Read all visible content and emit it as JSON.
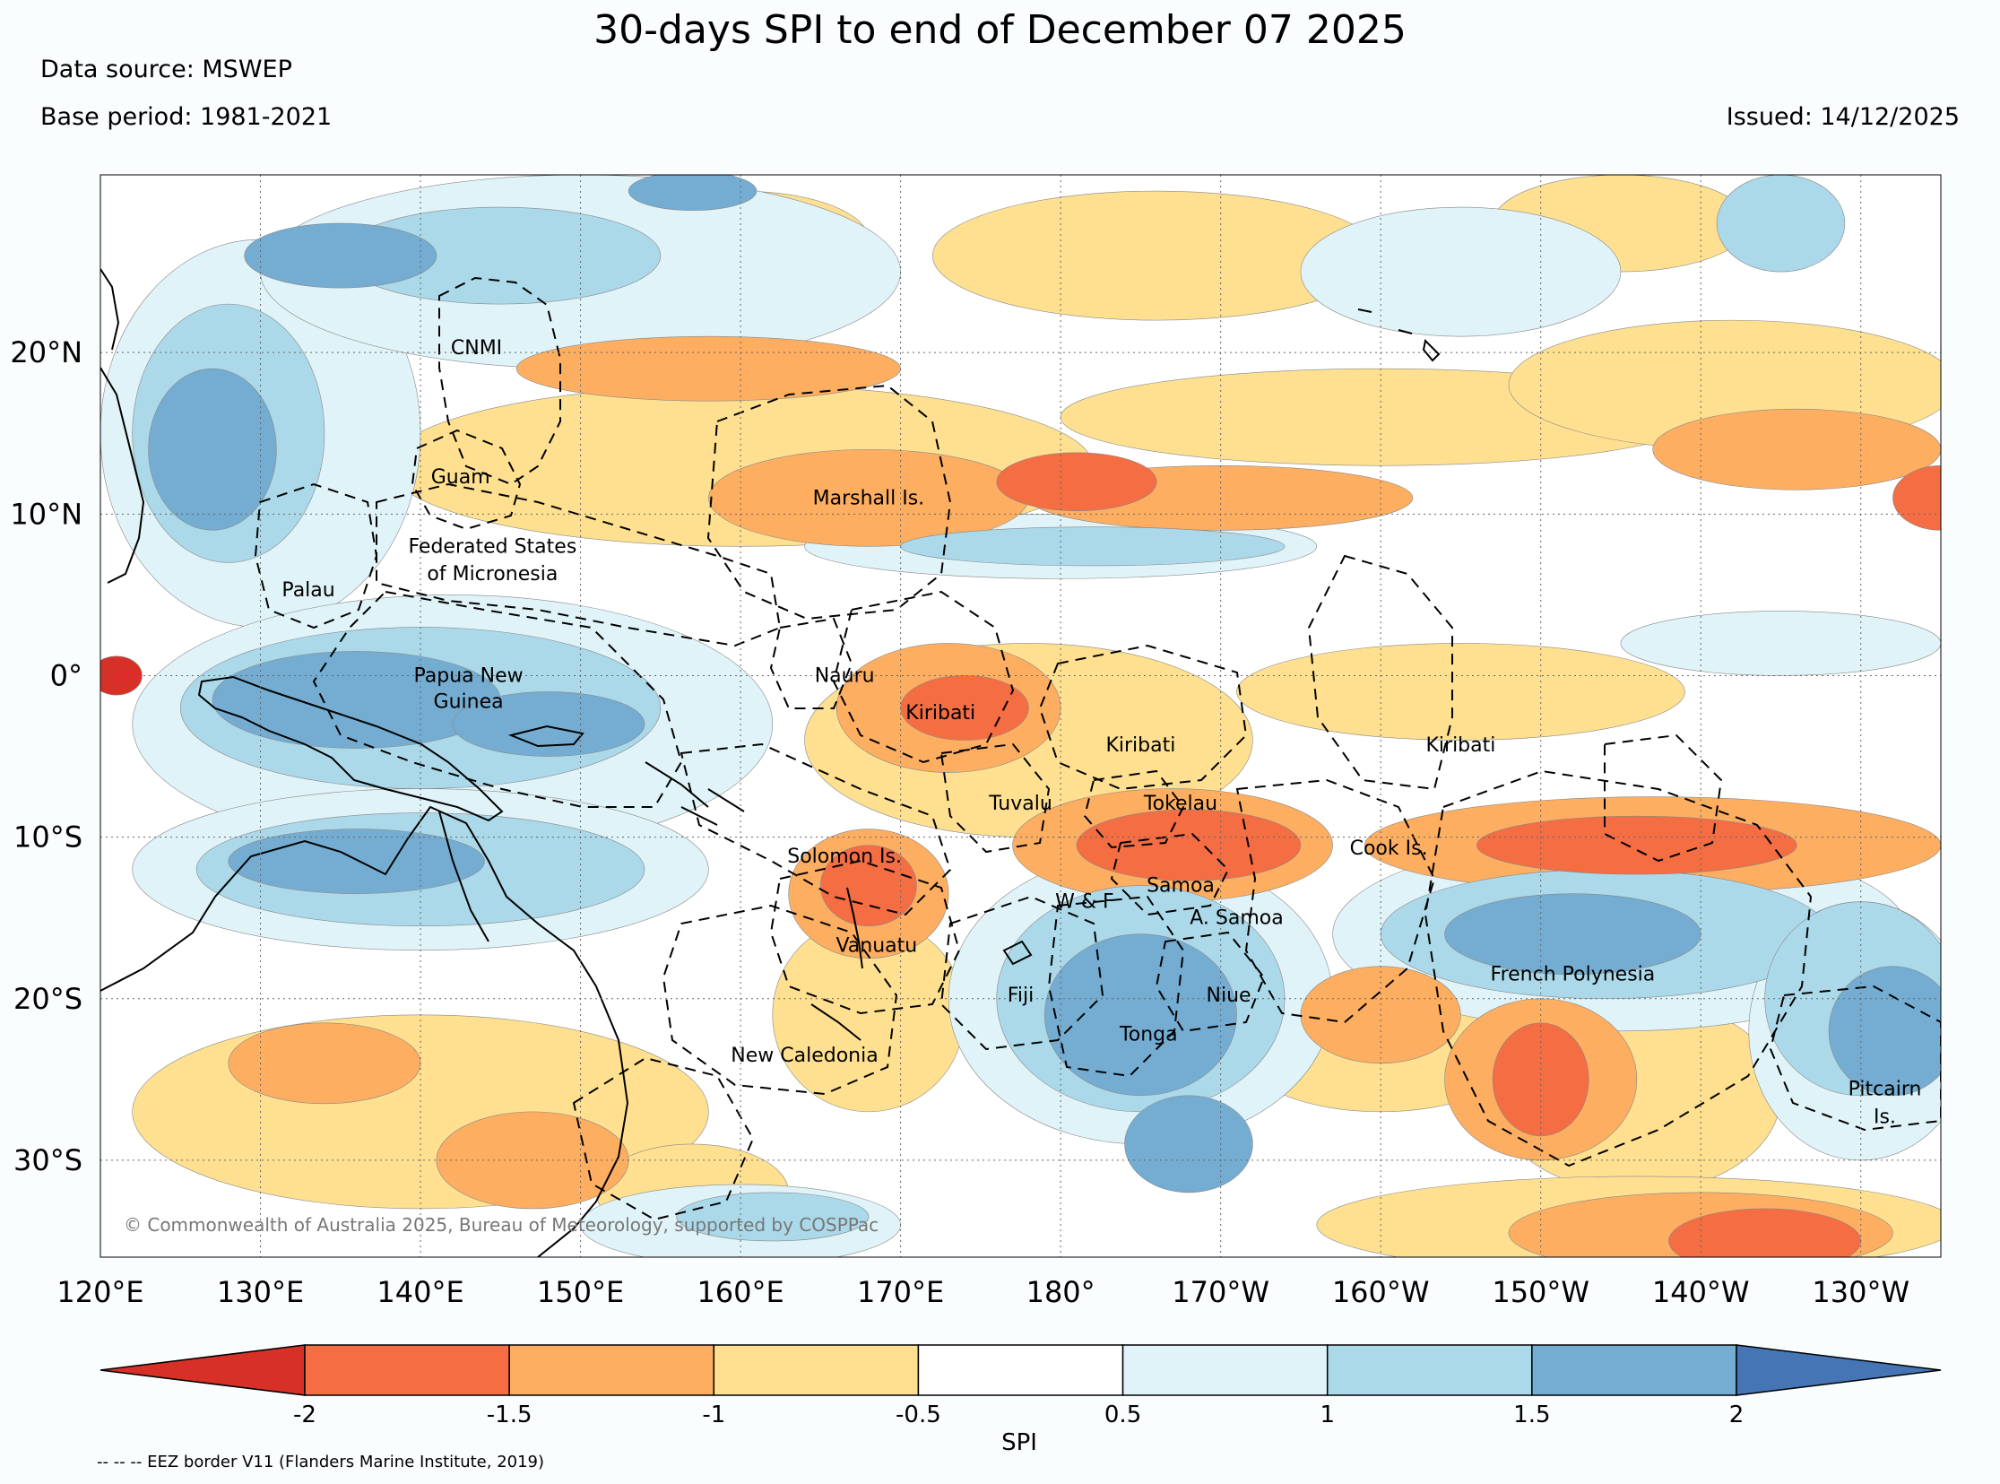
{
  "title": "30-days SPI to end of December 07 2025",
  "data_source": "Data source: MSWEP",
  "base_period": "Base period: 1981-2021",
  "issued": "Issued: 14/12/2025",
  "copyright": "© Commonwealth of Australia 2025, Bureau of Meteorology, supported by COSPPac",
  "footnote": "-- -- -- EEZ border V11 (Flanders Marine Institute, 2019)",
  "map": {
    "lon_range": [
      120,
      235
    ],
    "lat_range": [
      -36,
      31
    ],
    "lon_ticks": [
      {
        "lon": 120,
        "label": "120°E"
      },
      {
        "lon": 130,
        "label": "130°E"
      },
      {
        "lon": 140,
        "label": "140°E"
      },
      {
        "lon": 150,
        "label": "150°E"
      },
      {
        "lon": 160,
        "label": "160°E"
      },
      {
        "lon": 170,
        "label": "170°E"
      },
      {
        "lon": 180,
        "label": "180°"
      },
      {
        "lon": 190,
        "label": "170°W"
      },
      {
        "lon": 200,
        "label": "160°W"
      },
      {
        "lon": 210,
        "label": "150°W"
      },
      {
        "lon": 220,
        "label": "140°W"
      },
      {
        "lon": 230,
        "label": "130°W"
      }
    ],
    "lat_ticks": [
      {
        "lat": 20,
        "label": "20°N"
      },
      {
        "lat": 10,
        "label": "10°N"
      },
      {
        "lat": 0,
        "label": "0°"
      },
      {
        "lat": -10,
        "label": "10°S"
      },
      {
        "lat": -20,
        "label": "20°S"
      },
      {
        "lat": -30,
        "label": "30°S"
      }
    ],
    "places": [
      {
        "name": "CNMI",
        "lon": 143.5,
        "lat": 20.3
      },
      {
        "name": "Guam",
        "lon": 142.5,
        "lat": 12.3
      },
      {
        "name": "Marshall Is.",
        "lon": 168,
        "lat": 11.0
      },
      {
        "name": "Federated States",
        "lon": 144.5,
        "lat": 8.0
      },
      {
        "name": "of Micronesia",
        "lon": 144.5,
        "lat": 6.3
      },
      {
        "name": "Palau",
        "lon": 133,
        "lat": 5.3
      },
      {
        "name": "Papua New",
        "lon": 143,
        "lat": 0.0
      },
      {
        "name": "Guinea",
        "lon": 143,
        "lat": -1.6
      },
      {
        "name": "Nauru",
        "lon": 166.5,
        "lat": 0.0
      },
      {
        "name": "Kiribati",
        "lon": 172.5,
        "lat": -2.3
      },
      {
        "name": "Kiribati",
        "lon": 185,
        "lat": -4.3
      },
      {
        "name": "Kiribati",
        "lon": 205,
        "lat": -4.3
      },
      {
        "name": "Tuvalu",
        "lon": 177.5,
        "lat": -7.9
      },
      {
        "name": "Tokelau",
        "lon": 187.5,
        "lat": -7.9
      },
      {
        "name": "Solomon Is.",
        "lon": 166.5,
        "lat": -11.2
      },
      {
        "name": "Cook Is.",
        "lon": 200.5,
        "lat": -10.7
      },
      {
        "name": "Samoa",
        "lon": 187.5,
        "lat": -13.0
      },
      {
        "name": "W & F",
        "lon": 181.5,
        "lat": -14.0
      },
      {
        "name": "A. Samoa",
        "lon": 191,
        "lat": -15.0
      },
      {
        "name": "Vanuatu",
        "lon": 168.5,
        "lat": -16.7
      },
      {
        "name": "French Polynesia",
        "lon": 212,
        "lat": -18.5
      },
      {
        "name": "Fiji",
        "lon": 177.5,
        "lat": -19.8
      },
      {
        "name": "Niue",
        "lon": 190.5,
        "lat": -19.8
      },
      {
        "name": "Tonga",
        "lon": 185.5,
        "lat": -22.2
      },
      {
        "name": "New Caledonia",
        "lon": 164,
        "lat": -23.5
      },
      {
        "name": "Pitcairn",
        "lon": 231.5,
        "lat": -25.6
      },
      {
        "name": "Is.",
        "lon": 231.5,
        "lat": -27.3
      }
    ],
    "spi_regions": [
      {
        "class": 0,
        "lon": 121,
        "lat": 0,
        "rx": 1.6,
        "ry": 1.2
      },
      {
        "class": 1,
        "lon": 188,
        "lat": -10.5,
        "rx": 7,
        "ry": 2.2
      },
      {
        "class": 1,
        "lon": 216,
        "lat": -10.5,
        "rx": 10,
        "ry": 1.8
      },
      {
        "class": 1,
        "lon": 181,
        "lat": 12,
        "rx": 5,
        "ry": 1.8
      },
      {
        "class": 1,
        "lon": 168,
        "lat": -13,
        "rx": 3,
        "ry": 2.5
      },
      {
        "class": 1,
        "lon": 174,
        "lat": -2,
        "rx": 4,
        "ry": 2
      },
      {
        "class": 1,
        "lon": 210,
        "lat": -25,
        "rx": 3,
        "ry": 3.5
      },
      {
        "class": 1,
        "lon": 224,
        "lat": -35,
        "rx": 6,
        "ry": 2
      },
      {
        "class": 1,
        "lon": 235,
        "lat": 11,
        "rx": 3,
        "ry": 2
      },
      {
        "class": 2,
        "lon": 168,
        "lat": 11,
        "rx": 10,
        "ry": 3
      },
      {
        "class": 2,
        "lon": 187,
        "lat": -10.5,
        "rx": 10,
        "ry": 3.5
      },
      {
        "class": 2,
        "lon": 217,
        "lat": -10.5,
        "rx": 18,
        "ry": 3
      },
      {
        "class": 2,
        "lon": 173,
        "lat": -2,
        "rx": 7,
        "ry": 4
      },
      {
        "class": 2,
        "lon": 168,
        "lat": -13.5,
        "rx": 5,
        "ry": 4
      },
      {
        "class": 2,
        "lon": 210,
        "lat": -25,
        "rx": 6,
        "ry": 5
      },
      {
        "class": 2,
        "lon": 200,
        "lat": -21,
        "rx": 5,
        "ry": 3
      },
      {
        "class": 2,
        "lon": 190,
        "lat": 11,
        "rx": 12,
        "ry": 2
      },
      {
        "class": 2,
        "lon": 226,
        "lat": 14,
        "rx": 9,
        "ry": 2.5
      },
      {
        "class": 2,
        "lon": 158,
        "lat": 19,
        "rx": 12,
        "ry": 2
      },
      {
        "class": 2,
        "lon": 220,
        "lat": -34.5,
        "rx": 12,
        "ry": 2.5
      },
      {
        "class": 2,
        "lon": 134,
        "lat": -24,
        "rx": 6,
        "ry": 2.5
      },
      {
        "class": 2,
        "lon": 147,
        "lat": -30,
        "rx": 6,
        "ry": 3
      },
      {
        "class": 3,
        "lon": 160,
        "lat": 13,
        "rx": 22,
        "ry": 5
      },
      {
        "class": 3,
        "lon": 178,
        "lat": -4,
        "rx": 14,
        "ry": 6
      },
      {
        "class": 3,
        "lon": 205,
        "lat": -1,
        "rx": 14,
        "ry": 3
      },
      {
        "class": 3,
        "lon": 200,
        "lat": 16,
        "rx": 20,
        "ry": 3
      },
      {
        "class": 3,
        "lon": 222,
        "lat": 18,
        "rx": 14,
        "ry": 4
      },
      {
        "class": 3,
        "lon": 186,
        "lat": 26,
        "rx": 14,
        "ry": 4
      },
      {
        "class": 3,
        "lon": 168,
        "lat": -21,
        "rx": 6,
        "ry": 6
      },
      {
        "class": 3,
        "lon": 200,
        "lat": -23,
        "rx": 9,
        "ry": 4
      },
      {
        "class": 3,
        "lon": 216,
        "lat": -26,
        "rx": 9,
        "ry": 6
      },
      {
        "class": 3,
        "lon": 140,
        "lat": -27,
        "rx": 18,
        "ry": 6
      },
      {
        "class": 3,
        "lon": 157,
        "lat": -32,
        "rx": 6,
        "ry": 3
      },
      {
        "class": 3,
        "lon": 216,
        "lat": -34,
        "rx": 20,
        "ry": 3
      },
      {
        "class": 3,
        "lon": 215,
        "lat": 28,
        "rx": 8,
        "ry": 3
      },
      {
        "class": 3,
        "lon": 160,
        "lat": 27,
        "rx": 8,
        "ry": 3
      },
      {
        "class": 5,
        "lon": 130,
        "lat": 15,
        "rx": 10,
        "ry": 12
      },
      {
        "class": 5,
        "lon": 142,
        "lat": -3,
        "rx": 20,
        "ry": 8
      },
      {
        "class": 5,
        "lon": 140,
        "lat": -12,
        "rx": 18,
        "ry": 5
      },
      {
        "class": 5,
        "lon": 185,
        "lat": -20,
        "rx": 12,
        "ry": 9
      },
      {
        "class": 5,
        "lon": 215,
        "lat": -16,
        "rx": 18,
        "ry": 6
      },
      {
        "class": 5,
        "lon": 230,
        "lat": -22,
        "rx": 7,
        "ry": 8
      },
      {
        "class": 5,
        "lon": 180,
        "lat": 8,
        "rx": 16,
        "ry": 2
      },
      {
        "class": 5,
        "lon": 150,
        "lat": 25,
        "rx": 20,
        "ry": 6
      },
      {
        "class": 5,
        "lon": 225,
        "lat": 2,
        "rx": 10,
        "ry": 2
      },
      {
        "class": 5,
        "lon": 160,
        "lat": -34,
        "rx": 10,
        "ry": 2.5
      },
      {
        "class": 5,
        "lon": 205,
        "lat": 25,
        "rx": 10,
        "ry": 4
      },
      {
        "class": 6,
        "lon": 128,
        "lat": 15,
        "rx": 6,
        "ry": 8
      },
      {
        "class": 6,
        "lon": 140,
        "lat": -2,
        "rx": 15,
        "ry": 5
      },
      {
        "class": 6,
        "lon": 140,
        "lat": -12,
        "rx": 14,
        "ry": 3.5
      },
      {
        "class": 6,
        "lon": 185,
        "lat": -20,
        "rx": 9,
        "ry": 7
      },
      {
        "class": 6,
        "lon": 214,
        "lat": -16,
        "rx": 14,
        "ry": 4
      },
      {
        "class": 6,
        "lon": 230,
        "lat": -20,
        "rx": 6,
        "ry": 6
      },
      {
        "class": 6,
        "lon": 182,
        "lat": 8,
        "rx": 12,
        "ry": 1.2
      },
      {
        "class": 6,
        "lon": 145,
        "lat": 26,
        "rx": 10,
        "ry": 3
      },
      {
        "class": 6,
        "lon": 225,
        "lat": 28,
        "rx": 4,
        "ry": 3
      },
      {
        "class": 6,
        "lon": 162,
        "lat": -33.5,
        "rx": 6,
        "ry": 1.5
      },
      {
        "class": 7,
        "lon": 127,
        "lat": 14,
        "rx": 4,
        "ry": 5
      },
      {
        "class": 7,
        "lon": 136,
        "lat": -1.5,
        "rx": 9,
        "ry": 3
      },
      {
        "class": 7,
        "lon": 148,
        "lat": -3,
        "rx": 6,
        "ry": 2
      },
      {
        "class": 7,
        "lon": 136,
        "lat": -11.5,
        "rx": 8,
        "ry": 2
      },
      {
        "class": 7,
        "lon": 185,
        "lat": -21,
        "rx": 6,
        "ry": 5
      },
      {
        "class": 7,
        "lon": 188,
        "lat": -29,
        "rx": 4,
        "ry": 3
      },
      {
        "class": 7,
        "lon": 212,
        "lat": -16,
        "rx": 8,
        "ry": 2.5
      },
      {
        "class": 7,
        "lon": 232,
        "lat": -22,
        "rx": 4,
        "ry": 4
      },
      {
        "class": 7,
        "lon": 135,
        "lat": 26,
        "rx": 6,
        "ry": 2
      },
      {
        "class": 7,
        "lon": 157,
        "lat": 30,
        "rx": 4,
        "ry": 1.2
      }
    ]
  },
  "colorbar": {
    "label": "SPI",
    "ticks": [
      "-2",
      "-1.5",
      "-1",
      "-0.5",
      "0.5",
      "1",
      "1.5",
      "2"
    ],
    "colors": [
      "#d73027",
      "#f46d43",
      "#fdae61",
      "#fee090",
      "#ffffff",
      "#e0f3f8",
      "#abd9e9",
      "#74add1",
      "#4575b4"
    ]
  }
}
